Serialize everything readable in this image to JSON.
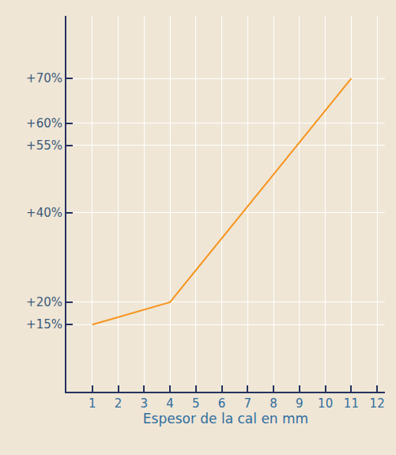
{
  "chart_data": {
    "type": "line",
    "x": [
      1,
      4,
      11
    ],
    "values": [
      15,
      20,
      70
    ],
    "color": "#f7941d",
    "x_label": "Espesor de la cal en mm",
    "xlim": [
      0,
      12.3
    ],
    "xticks": [
      1,
      2,
      3,
      4,
      5,
      6,
      7,
      8,
      9,
      10,
      11,
      12
    ],
    "ylim": [
      0,
      84
    ],
    "yticks": [
      {
        "value": 15,
        "label": "+15%"
      },
      {
        "value": 20,
        "label": "+20%"
      },
      {
        "value": 40,
        "label": "+40%"
      },
      {
        "value": 55,
        "label": "+55%"
      },
      {
        "value": 60,
        "label": "+60%"
      },
      {
        "value": 70,
        "label": "+70%"
      }
    ],
    "grid": true
  }
}
